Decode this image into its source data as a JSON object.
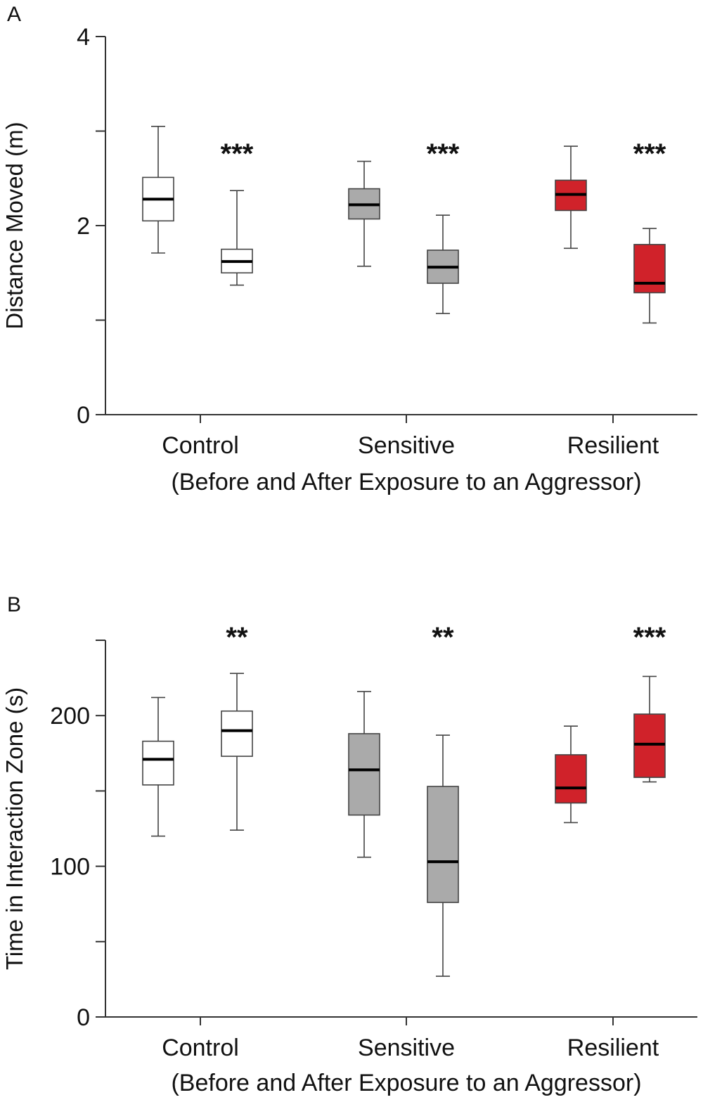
{
  "chart_data": [
    {
      "panel": "A",
      "type": "box",
      "title": "",
      "ylabel": "Distance Moved (m)",
      "xlabel": "(Before and After Exposure to an Aggressor)",
      "ylim": [
        0,
        4
      ],
      "yticks": [
        0,
        1,
        2,
        3,
        4
      ],
      "ytick_labels": [
        "0",
        "",
        "2",
        "",
        "4"
      ],
      "categories": [
        "Control",
        "Sensitive",
        "Resilient"
      ],
      "significance": [
        "***",
        "***",
        "***"
      ],
      "series": [
        {
          "name": "Before",
          "colors": [
            "#ffffff",
            "#aaaaaa",
            "#d0222a"
          ],
          "boxes": [
            {
              "min": 1.71,
              "q1": 2.05,
              "median": 2.28,
              "q3": 2.51,
              "max": 3.05
            },
            {
              "min": 1.57,
              "q1": 2.07,
              "median": 2.22,
              "q3": 2.39,
              "max": 2.68
            },
            {
              "min": 1.76,
              "q1": 2.16,
              "median": 2.33,
              "q3": 2.48,
              "max": 2.84
            }
          ]
        },
        {
          "name": "After",
          "colors": [
            "#ffffff",
            "#aaaaaa",
            "#d0222a"
          ],
          "boxes": [
            {
              "min": 1.37,
              "q1": 1.5,
              "median": 1.62,
              "q3": 1.75,
              "max": 2.37
            },
            {
              "min": 1.07,
              "q1": 1.39,
              "median": 1.56,
              "q3": 1.74,
              "max": 2.11
            },
            {
              "min": 0.97,
              "q1": 1.29,
              "median": 1.39,
              "q3": 1.8,
              "max": 1.97
            }
          ]
        }
      ]
    },
    {
      "panel": "B",
      "type": "box",
      "title": "",
      "ylabel": "Time in Interaction Zone (s)",
      "xlabel": "(Before and After Exposure to an Aggressor)",
      "ylim": [
        0,
        250
      ],
      "yticks": [
        0,
        50,
        100,
        150,
        200,
        250
      ],
      "ytick_labels": [
        "0",
        "",
        "100",
        "",
        "200",
        ""
      ],
      "categories": [
        "Control",
        "Sensitive",
        "Resilient"
      ],
      "significance": [
        "**",
        "**",
        "***"
      ],
      "series": [
        {
          "name": "Before",
          "colors": [
            "#ffffff",
            "#aaaaaa",
            "#d0222a"
          ],
          "boxes": [
            {
              "min": 120,
              "q1": 154,
              "median": 171,
              "q3": 183,
              "max": 212
            },
            {
              "min": 106,
              "q1": 134,
              "median": 164,
              "q3": 188,
              "max": 216
            },
            {
              "min": 129,
              "q1": 142,
              "median": 152,
              "q3": 174,
              "max": 193
            }
          ]
        },
        {
          "name": "After",
          "colors": [
            "#ffffff",
            "#aaaaaa",
            "#d0222a"
          ],
          "boxes": [
            {
              "min": 124,
              "q1": 173,
              "median": 190,
              "q3": 203,
              "max": 228
            },
            {
              "min": 27,
              "q1": 76,
              "median": 103,
              "q3": 153,
              "max": 187
            },
            {
              "min": 156,
              "q1": 159,
              "median": 181,
              "q3": 201,
              "max": 226
            }
          ]
        }
      ]
    }
  ]
}
